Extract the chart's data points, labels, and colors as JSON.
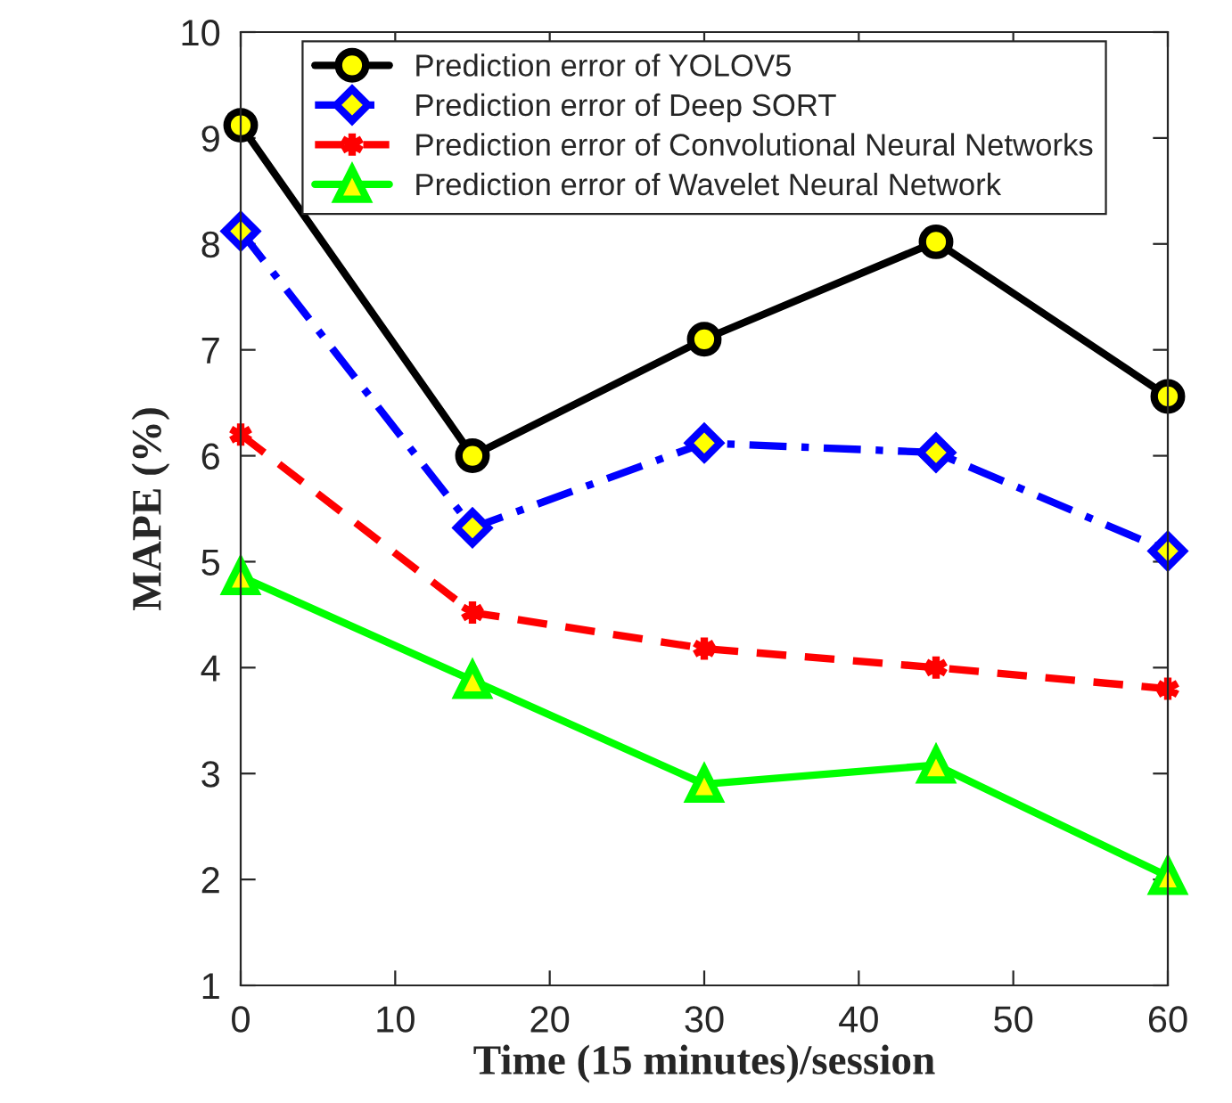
{
  "chart_data": {
    "type": "line",
    "xlabel": "Time (15 minutes)/session",
    "ylabel": "MAPE (%)",
    "x": [
      0,
      15,
      30,
      45,
      60
    ],
    "series": [
      {
        "name": "Prediction error of YOLOV5",
        "color": "#000000",
        "marker": "circle",
        "line_style": "solid",
        "values": [
          9.12,
          6.0,
          7.1,
          8.02,
          6.56
        ]
      },
      {
        "name": "Prediction error of Deep SORT",
        "color": "#0000ff",
        "marker": "diamond",
        "line_style": "dashdot",
        "values": [
          8.12,
          5.32,
          6.12,
          6.03,
          5.1
        ]
      },
      {
        "name": "Prediction error of Convolutional Neural Networks",
        "color": "#ff0000",
        "marker": "cross",
        "line_style": "dashed",
        "values": [
          6.2,
          4.52,
          4.18,
          4.0,
          3.8
        ]
      },
      {
        "name": "Prediction error of Wavelet Neural Network",
        "color": "#00ff00",
        "marker": "triangle",
        "line_style": "solid",
        "values": [
          4.86,
          3.88,
          2.9,
          3.08,
          2.03
        ]
      }
    ],
    "xlim": [
      0,
      60
    ],
    "xticks": [
      0,
      10,
      20,
      30,
      40,
      50,
      60
    ],
    "ylim": [
      1,
      10
    ],
    "yticks": [
      1,
      2,
      3,
      4,
      5,
      6,
      7,
      8,
      9,
      10
    ],
    "grid": false,
    "legend": "top"
  }
}
